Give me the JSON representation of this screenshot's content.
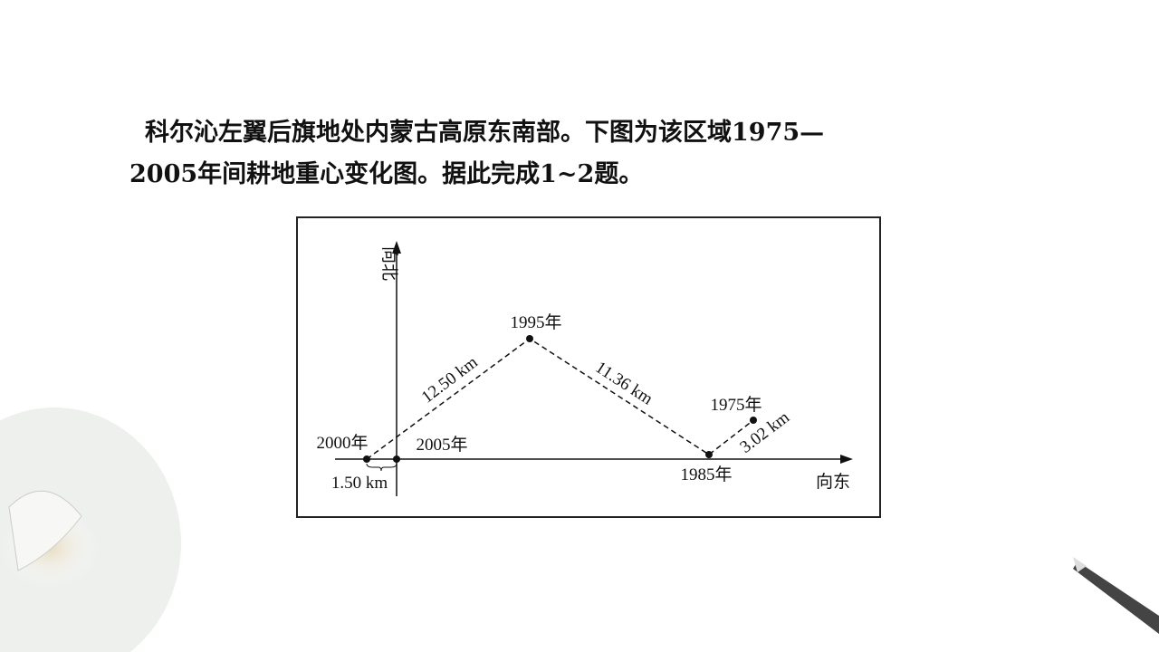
{
  "question": {
    "lines": [
      "科尔沁左翼后旗地处内蒙古高原东南部。下图为该区域1975—",
      "2005年间耕地重心变化图。据此完成1~2题。"
    ]
  },
  "diagram": {
    "axis_north": "向北",
    "axis_east": "向东",
    "points": {
      "p1995": "1995年",
      "p2000": "2000年",
      "p2005": "2005年",
      "p1985": "1985年",
      "p1975": "1975年"
    },
    "distances": {
      "d2000_2005": "1.50 km",
      "d2000_1995": "12.50 km",
      "d1995_1985": "11.36 km",
      "d1985_1975": "3.02 km"
    }
  }
}
